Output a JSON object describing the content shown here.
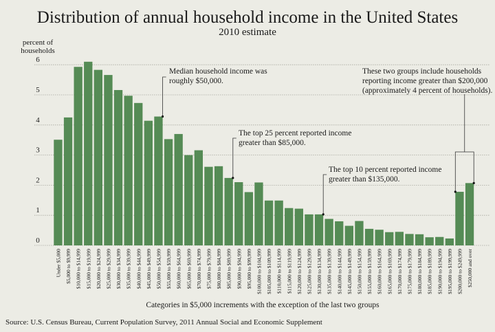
{
  "chart_data": {
    "type": "bar",
    "title": "Distribution of annual household income in the United States",
    "subtitle": "2010 estimate",
    "ylabel": [
      "percent of",
      "households"
    ],
    "xlabel": "Categories in $5,000 increments with the exception of the last two groups",
    "ylim": [
      0,
      6
    ],
    "yticks": [
      0,
      1,
      2,
      3,
      4,
      5,
      6
    ],
    "grid": true,
    "bar_color": "#558b55",
    "categories": [
      "Under $5,000",
      "$5,000 to $9,999",
      "$10,000 to $14,999",
      "$15,000 to $19,999",
      "$20,000 to $24,999",
      "$25,000 to $29,999",
      "$30,000 to $34,999",
      "$35,000 to $39,999",
      "$40,000 to $44,999",
      "$45,000 to $49,999",
      "$50,000 to $54,999",
      "$55,000 to $59,999",
      "$60,000 to $64,999",
      "$65,000 to $69,999",
      "$70,000 to $74,999",
      "$75,000 to $79,999",
      "$80,000 to $84,999",
      "$85,000 to $89,999",
      "$90,000 to $94,999",
      "$95,000 to $99,999",
      "$100,000 to $104,999",
      "$105,000 to $109,999",
      "$110,000 to $114,999",
      "$115,000 to $119,999",
      "$120,000 to $124,999",
      "$125,000 to $129,999",
      "$130,000 to $134,999",
      "$135,000 to $139,999",
      "$140,000 to $144,999",
      "$145,000 to $149,999",
      "$150,000 to $154,999",
      "$155,000 to $159,999",
      "$160,000 to $164,999",
      "$165,000 to $169,999",
      "$170,000 to $174,999",
      "$175,000 to $179,999",
      "$180,000 to $184,999",
      "$185,000 to $189,999",
      "$190,000 to $194,999",
      "$195,000 to $199,999",
      "$200,000 to $249,999",
      "$250,000 and over"
    ],
    "values": [
      3.51,
      4.25,
      5.93,
      6.1,
      5.83,
      5.66,
      5.16,
      4.97,
      4.73,
      4.14,
      4.28,
      3.53,
      3.7,
      3.0,
      3.16,
      2.61,
      2.63,
      2.24,
      2.1,
      1.77,
      2.09,
      1.49,
      1.49,
      1.24,
      1.22,
      1.03,
      1.03,
      0.88,
      0.8,
      0.65,
      0.81,
      0.55,
      0.52,
      0.44,
      0.45,
      0.38,
      0.37,
      0.27,
      0.28,
      0.23,
      1.78,
      2.07
    ],
    "annotations": [
      {
        "category_index": 10,
        "lines": [
          "Median household income was",
          "roughly $50,000."
        ]
      },
      {
        "category_index": 17,
        "lines": [
          "The top 25 percent reported income",
          "greater than $85,000."
        ]
      },
      {
        "category_index": 26,
        "lines": [
          "The top 10 percent reported income",
          "greater than $135,000."
        ]
      },
      {
        "category_indices": [
          40,
          41
        ],
        "lines": [
          "These two groups include households",
          "reporting income greater than $200,000",
          "(approximately 4 percent of households)."
        ]
      }
    ],
    "source": "Source: U.S. Census Bureau, Current Population Survey, 2011 Annual Social and Economic Supplement"
  }
}
